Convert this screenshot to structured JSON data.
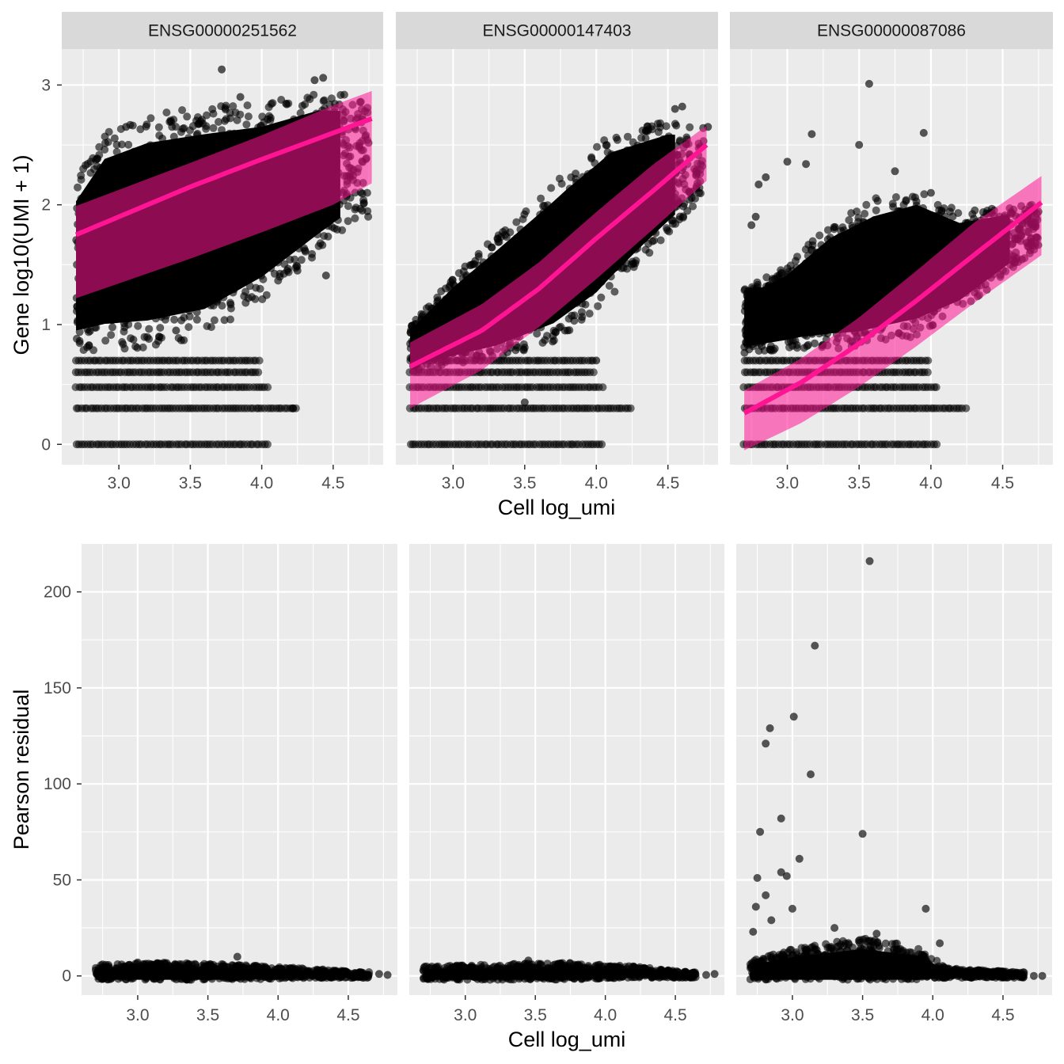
{
  "colors": {
    "panel_background": "#ebebeb",
    "grid": "#ffffff",
    "strip_background": "#d9d9d9",
    "points": "#000000",
    "fit_line": "#ff1493",
    "ribbon": "#ff1493"
  },
  "chart_data": [
    {
      "type": "scatter",
      "facet_row": "top",
      "xlabel": "Cell log_umi",
      "ylabel": "Gene log10(UMI + 1)",
      "x_ticks": [
        "3.0",
        "3.5",
        "4.0",
        "4.5"
      ],
      "y_ticks": [
        "0",
        "1",
        "2",
        "3"
      ],
      "xlim": [
        2.6,
        4.85
      ],
      "ylim": [
        -0.17,
        3.3
      ],
      "grid": true,
      "panels": [
        {
          "title": "ENSG00000251562",
          "discrete_levels": [
            0,
            0.301,
            0.477,
            0.602,
            0.699
          ],
          "cloud_lower": [
            [
              2.7,
              0.78
            ],
            [
              3.2,
              0.8
            ],
            [
              3.6,
              0.9
            ],
            [
              4.0,
              1.2
            ],
            [
              4.3,
              1.5
            ],
            [
              4.7,
              1.9
            ]
          ],
          "cloud_upper": [
            [
              2.7,
              2.2
            ],
            [
              2.9,
              2.6
            ],
            [
              3.2,
              2.75
            ],
            [
              3.6,
              2.82
            ],
            [
              4.0,
              2.85
            ],
            [
              4.4,
              2.95
            ],
            [
              4.7,
              2.9
            ]
          ],
          "fit": [
            [
              2.7,
              1.75
            ],
            [
              3.5,
              2.15
            ],
            [
              4.0,
              2.38
            ],
            [
              4.5,
              2.6
            ],
            [
              4.77,
              2.72
            ]
          ],
          "ribbon_lower": [
            [
              2.7,
              1.22
            ],
            [
              3.5,
              1.55
            ],
            [
              4.0,
              1.77
            ],
            [
              4.5,
              2.0
            ],
            [
              4.77,
              2.18
            ]
          ],
          "ribbon_upper": [
            [
              2.7,
              1.99
            ],
            [
              3.5,
              2.35
            ],
            [
              4.0,
              2.58
            ],
            [
              4.5,
              2.83
            ],
            [
              4.77,
              2.95
            ]
          ],
          "outliers": [
            [
              3.72,
              3.13
            ],
            [
              4.37,
              3.04
            ],
            [
              4.43,
              3.06
            ],
            [
              3.05,
              2.65
            ],
            [
              3.85,
              2.9
            ],
            [
              4.45,
              1.41
            ],
            [
              4.25,
              1.45
            ],
            [
              4.22,
              0.3
            ],
            [
              3.4,
              0.95
            ]
          ]
        },
        {
          "title": "ENSG00000147403",
          "discrete_levels": [
            0,
            0.301,
            0.477,
            0.602,
            0.699
          ],
          "cloud_lower": [
            [
              2.7,
              0.6
            ],
            [
              3.3,
              0.7
            ],
            [
              3.7,
              0.85
            ],
            [
              4.0,
              1.1
            ],
            [
              4.3,
              1.5
            ],
            [
              4.7,
              2.0
            ]
          ],
          "cloud_upper": [
            [
              2.7,
              1.0
            ],
            [
              3.0,
              1.4
            ],
            [
              3.4,
              1.85
            ],
            [
              3.8,
              2.3
            ],
            [
              4.1,
              2.6
            ],
            [
              4.5,
              2.7
            ],
            [
              4.75,
              2.65
            ]
          ],
          "fit": [
            [
              2.7,
              0.65
            ],
            [
              3.2,
              0.95
            ],
            [
              3.6,
              1.3
            ],
            [
              4.0,
              1.72
            ],
            [
              4.4,
              2.12
            ],
            [
              4.77,
              2.5
            ]
          ],
          "ribbon_lower": [
            [
              2.7,
              0.3
            ],
            [
              3.2,
              0.62
            ],
            [
              3.6,
              0.98
            ],
            [
              4.0,
              1.38
            ],
            [
              4.4,
              1.8
            ],
            [
              4.77,
              2.2
            ]
          ],
          "ribbon_upper": [
            [
              2.7,
              0.85
            ],
            [
              3.2,
              1.17
            ],
            [
              3.6,
              1.52
            ],
            [
              4.0,
              1.94
            ],
            [
              4.4,
              2.34
            ],
            [
              4.77,
              2.66
            ]
          ],
          "outliers": [
            [
              4.55,
              2.8
            ],
            [
              4.6,
              2.82
            ],
            [
              4.78,
              2.65
            ],
            [
              4.0,
              0.7
            ],
            [
              3.5,
              0.35
            ]
          ]
        },
        {
          "title": "ENSG00000087086",
          "discrete_levels": [
            0,
            0.301,
            0.477,
            0.602,
            0.699
          ],
          "cloud_lower": [
            [
              2.7,
              0.75
            ],
            [
              3.1,
              0.8
            ],
            [
              3.5,
              0.8
            ],
            [
              3.9,
              0.9
            ],
            [
              4.2,
              1.1
            ],
            [
              4.7,
              1.6
            ]
          ],
          "cloud_upper": [
            [
              2.7,
              1.3
            ],
            [
              3.0,
              1.5
            ],
            [
              3.3,
              1.85
            ],
            [
              3.6,
              2.05
            ],
            [
              3.9,
              2.15
            ],
            [
              4.2,
              1.95
            ],
            [
              4.7,
              2.0
            ]
          ],
          "fit": [
            [
              2.7,
              0.26
            ],
            [
              3.1,
              0.52
            ],
            [
              3.5,
              0.84
            ],
            [
              3.9,
              1.2
            ],
            [
              4.3,
              1.58
            ],
            [
              4.77,
              2.02
            ]
          ],
          "ribbon_lower": [
            [
              2.7,
              -0.05
            ],
            [
              3.1,
              0.18
            ],
            [
              3.5,
              0.48
            ],
            [
              3.9,
              0.82
            ],
            [
              4.3,
              1.18
            ],
            [
              4.77,
              1.58
            ]
          ],
          "ribbon_upper": [
            [
              2.7,
              0.45
            ],
            [
              3.1,
              0.72
            ],
            [
              3.5,
              1.06
            ],
            [
              3.9,
              1.45
            ],
            [
              4.3,
              1.85
            ],
            [
              4.77,
              2.24
            ]
          ],
          "outliers": [
            [
              3.57,
              3.01
            ],
            [
              3.0,
              2.36
            ],
            [
              3.13,
              2.34
            ],
            [
              3.17,
              2.59
            ],
            [
              3.5,
              2.5
            ],
            [
              3.95,
              2.6
            ],
            [
              2.8,
              2.17
            ],
            [
              2.85,
              2.23
            ],
            [
              2.75,
              1.83
            ],
            [
              2.78,
              1.9
            ],
            [
              3.75,
              2.28
            ],
            [
              4.0,
              2.1
            ]
          ]
        }
      ]
    },
    {
      "type": "scatter",
      "facet_row": "bottom",
      "xlabel": "Cell log_umi",
      "ylabel": "Pearson residual",
      "x_ticks": [
        "3.0",
        "3.5",
        "4.0",
        "4.5"
      ],
      "y_ticks": [
        "0",
        "50",
        "100",
        "150",
        "200"
      ],
      "xlim": [
        2.6,
        4.85
      ],
      "ylim": [
        -10,
        225
      ],
      "grid": true,
      "panels": [
        {
          "band": [
            [
              2.7,
              -2,
              6
            ],
            [
              3.2,
              -2,
              7
            ],
            [
              3.7,
              -2,
              6
            ],
            [
              4.2,
              -1,
              4
            ],
            [
              4.6,
              -1,
              2
            ]
          ],
          "outliers": [
            [
              3.71,
              10
            ],
            [
              4.72,
              1
            ],
            [
              4.78,
              0.5
            ],
            [
              2.75,
              6
            ],
            [
              3.0,
              7
            ]
          ]
        },
        {
          "band": [
            [
              2.7,
              -2,
              5
            ],
            [
              3.2,
              -2,
              6
            ],
            [
              3.7,
              -2,
              7
            ],
            [
              4.2,
              -1,
              5
            ],
            [
              4.6,
              -1,
              2
            ]
          ],
          "outliers": [
            [
              4.72,
              0.5
            ],
            [
              4.78,
              1
            ],
            [
              3.45,
              8
            ]
          ]
        },
        {
          "band": [
            [
              2.7,
              -2,
              8
            ],
            [
              3.0,
              -2,
              14
            ],
            [
              3.5,
              -2,
              20
            ],
            [
              3.9,
              -2,
              15
            ],
            [
              4.1,
              -1,
              4
            ],
            [
              4.6,
              -1,
              2
            ]
          ],
          "outliers": [
            [
              3.55,
              216
            ],
            [
              3.16,
              172
            ],
            [
              3.01,
              135
            ],
            [
              2.84,
              129
            ],
            [
              2.81,
              121
            ],
            [
              3.13,
              105
            ],
            [
              2.92,
              82
            ],
            [
              2.77,
              75
            ],
            [
              3.5,
              74
            ],
            [
              3.05,
              61
            ],
            [
              2.92,
              54
            ],
            [
              2.96,
              52
            ],
            [
              2.75,
              51
            ],
            [
              2.81,
              42
            ],
            [
              2.74,
              36
            ],
            [
              2.85,
              29
            ],
            [
              3.0,
              35
            ],
            [
              2.72,
              23
            ],
            [
              3.95,
              35
            ],
            [
              3.3,
              25
            ],
            [
              3.6,
              22
            ],
            [
              4.05,
              17
            ],
            [
              4.72,
              0
            ],
            [
              4.78,
              0
            ]
          ]
        }
      ]
    }
  ]
}
